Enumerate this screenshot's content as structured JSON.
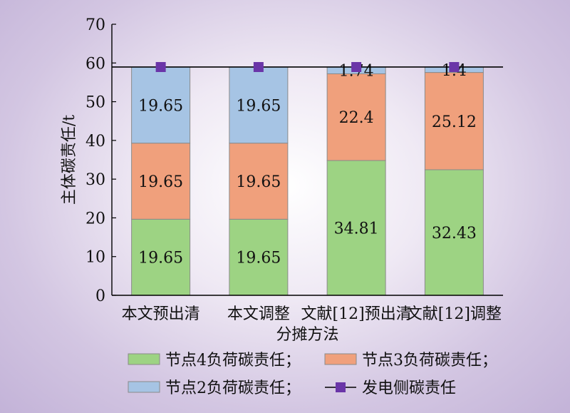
{
  "chart_data": {
    "type": "bar",
    "stacked": true,
    "categories": [
      "本文预出清",
      "本文调整",
      "文献[12]预出清",
      "文献[12]调整"
    ],
    "series": [
      {
        "name": "节点4负荷碳责任；",
        "color": "#9dd383",
        "values": [
          19.65,
          19.65,
          34.81,
          32.43
        ]
      },
      {
        "name": "节点3负荷碳责任；",
        "color": "#f0a07c",
        "values": [
          19.65,
          19.65,
          22.4,
          25.12
        ]
      },
      {
        "name": "节点2负荷碳责任；",
        "color": "#a6c4e4",
        "values": [
          19.65,
          19.65,
          1.74,
          1.4
        ]
      }
    ],
    "line_series": {
      "name": "发电侧碳责任",
      "color": "#6a35a8",
      "values": [
        58.95,
        58.95,
        58.95,
        58.95
      ]
    },
    "xlabel": "分摊方法",
    "ylabel": "主体碳责任/t",
    "ylim": [
      0,
      70
    ],
    "yticks": [
      0,
      10,
      20,
      30,
      40,
      50,
      60,
      70
    ],
    "grid": false,
    "legend_position": "bottom"
  }
}
